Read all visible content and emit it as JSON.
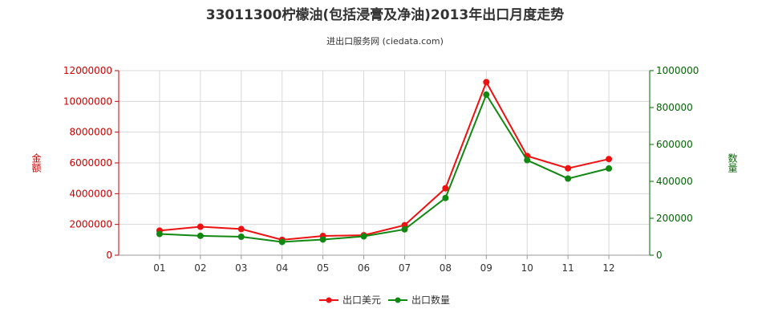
{
  "chart_data": {
    "type": "line",
    "title": "33011300柠檬油(包括浸膏及净油)2013年出口月度走势",
    "subtitle": "进出口服务网 (ciedata.com)",
    "categories": [
      "01",
      "02",
      "03",
      "04",
      "05",
      "06",
      "07",
      "08",
      "09",
      "10",
      "11",
      "12"
    ],
    "y_left": {
      "label": "金额",
      "range": [
        0,
        12000000
      ],
      "ticks": [
        "0",
        "2000000",
        "4000000",
        "6000000",
        "8000000",
        "10000000",
        "12000000"
      ],
      "color": "#cc0000"
    },
    "y_right": {
      "label": "数量",
      "range": [
        0,
        1000000
      ],
      "ticks": [
        "0",
        "200000",
        "400000",
        "600000",
        "800000",
        "1000000"
      ],
      "color": "#006600"
    },
    "series": [
      {
        "name": "出口美元",
        "axis": "left",
        "color": "#ee1111",
        "values": [
          1600000,
          1850000,
          1700000,
          1000000,
          1250000,
          1300000,
          1950000,
          4350000,
          11250000,
          6450000,
          5650000,
          6250000
        ]
      },
      {
        "name": "出口数量",
        "axis": "right",
        "color": "#118811",
        "values": [
          115000,
          105000,
          100000,
          72000,
          85000,
          102000,
          140000,
          310000,
          870000,
          515000,
          415000,
          470000
        ]
      }
    ],
    "grid": true,
    "legend_position": "bottom-center"
  }
}
